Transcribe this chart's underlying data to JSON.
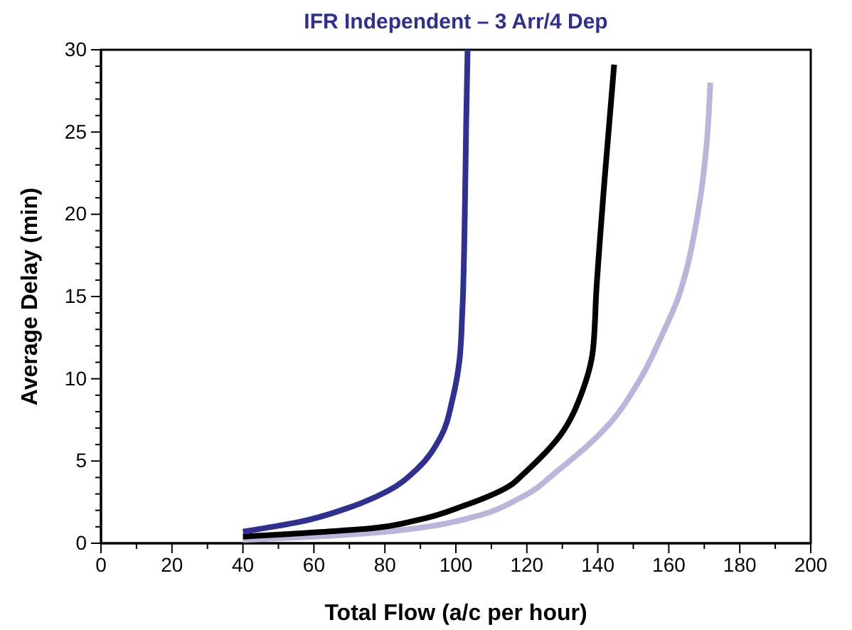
{
  "chart_data": {
    "type": "line",
    "title": "IFR Independent – 3 Arr/4 Dep",
    "xlabel": "Total Flow (a/c per hour)",
    "ylabel": "Average Delay (min)",
    "xlim": [
      0,
      200
    ],
    "xticks": [
      0,
      20,
      40,
      60,
      80,
      100,
      120,
      140,
      160,
      180,
      200
    ],
    "ylim": [
      0,
      30
    ],
    "yticks": [
      0,
      5,
      10,
      15,
      20,
      25,
      30
    ],
    "grid": false,
    "marker": "none",
    "line_style": "solid",
    "series": [
      {
        "color": "#2e3192",
        "x": [
          40,
          56,
          69,
          81,
          89,
          95.8,
          99.1,
          101,
          101.8,
          102.5,
          102.9,
          103.3
        ],
        "values": [
          0.7,
          1.3,
          2.1,
          3.2,
          4.5,
          6.5,
          8.8,
          11.1,
          14,
          19.8,
          25.5,
          30
        ]
      },
      {
        "color": "#000000",
        "x": [
          40,
          75.8,
          89,
          102.5,
          115.9,
          118.5,
          129.2,
          135.9,
          138.6,
          139.6,
          141.9,
          144.6
        ],
        "values": [
          0.4,
          0.9,
          1.4,
          2.3,
          3.6,
          4.1,
          6.5,
          9.4,
          11.7,
          15.4,
          22.1,
          29.1
        ]
      },
      {
        "color": "#b9b5db",
        "x": [
          40,
          60,
          75,
          91.8,
          105,
          118.5,
          129.2,
          142.6,
          152,
          158.6,
          162.6,
          164.6,
          168,
          170.6,
          171.7
        ],
        "values": [
          0.2,
          0.4,
          0.6,
          1,
          1.6,
          2.8,
          4.5,
          7.1,
          10,
          12.9,
          14.9,
          16.3,
          19.8,
          24.1,
          28
        ]
      }
    ]
  }
}
